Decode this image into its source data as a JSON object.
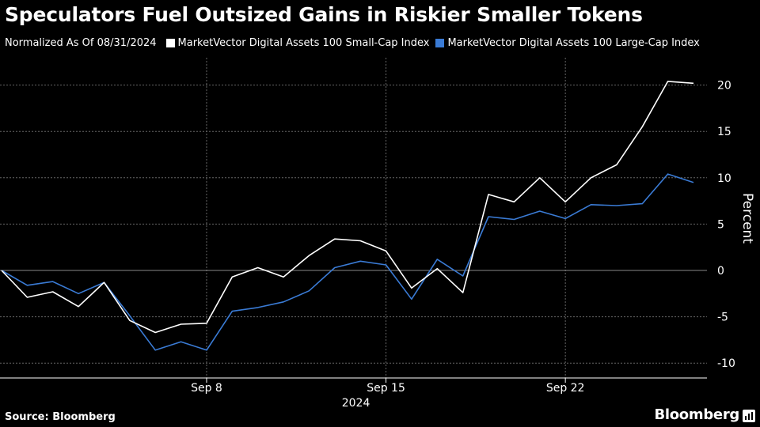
{
  "title": "Speculators Fuel Outsized Gains in Riskier Smaller Tokens",
  "subtitle": "Normalized As Of 08/31/2024",
  "source": "Source: Bloomberg",
  "brand": "Bloomberg",
  "chart_data": {
    "type": "line",
    "subtitle": "Normalized As Of 08/31/2024",
    "ylabel": "Percent",
    "xlabel": "",
    "ylim": [
      -10,
      20
    ],
    "yticks": [
      20,
      15,
      10,
      5,
      0,
      -5,
      -10
    ],
    "xticks": [
      {
        "label": "Sep 8",
        "x": "2024-09-08"
      },
      {
        "label": "Sep 15",
        "x": "2024-09-15"
      },
      {
        "label": "Sep 22",
        "x": "2024-09-22"
      }
    ],
    "year_label": "2024",
    "grid": true,
    "legend_position": "top",
    "x": [
      "2024-08-31",
      "2024-09-01",
      "2024-09-02",
      "2024-09-03",
      "2024-09-04",
      "2024-09-05",
      "2024-09-06",
      "2024-09-07",
      "2024-09-08",
      "2024-09-09",
      "2024-09-10",
      "2024-09-11",
      "2024-09-12",
      "2024-09-13",
      "2024-09-14",
      "2024-09-15",
      "2024-09-16",
      "2024-09-17",
      "2024-09-18",
      "2024-09-19",
      "2024-09-20",
      "2024-09-21",
      "2024-09-22",
      "2024-09-23",
      "2024-09-24",
      "2024-09-25",
      "2024-09-26",
      "2024-09-27"
    ],
    "series": [
      {
        "name": "MarketVector Digital Assets 100 Small-Cap Index",
        "color": "#ffffff",
        "values": [
          0,
          -2.9,
          -2.3,
          -3.9,
          -1.3,
          -5.4,
          -6.7,
          -5.8,
          -5.7,
          -0.7,
          0.3,
          -0.7,
          1.6,
          3.4,
          3.2,
          2.1,
          -1.9,
          0.2,
          -2.4,
          8.2,
          7.4,
          10.0,
          7.4,
          10.0,
          11.4,
          15.5,
          20.4,
          20.2
        ]
      },
      {
        "name": "MarketVector Digital Assets 100 Large-Cap Index",
        "color": "#3a7bd5",
        "values": [
          0,
          -1.6,
          -1.2,
          -2.5,
          -1.3,
          -4.9,
          -8.6,
          -7.7,
          -8.6,
          -4.4,
          -4.0,
          -3.4,
          -2.2,
          0.3,
          1.0,
          0.6,
          -3.1,
          1.2,
          -0.6,
          5.8,
          5.5,
          6.4,
          5.6,
          7.1,
          7.0,
          7.2,
          10.4,
          9.5
        ]
      }
    ]
  }
}
